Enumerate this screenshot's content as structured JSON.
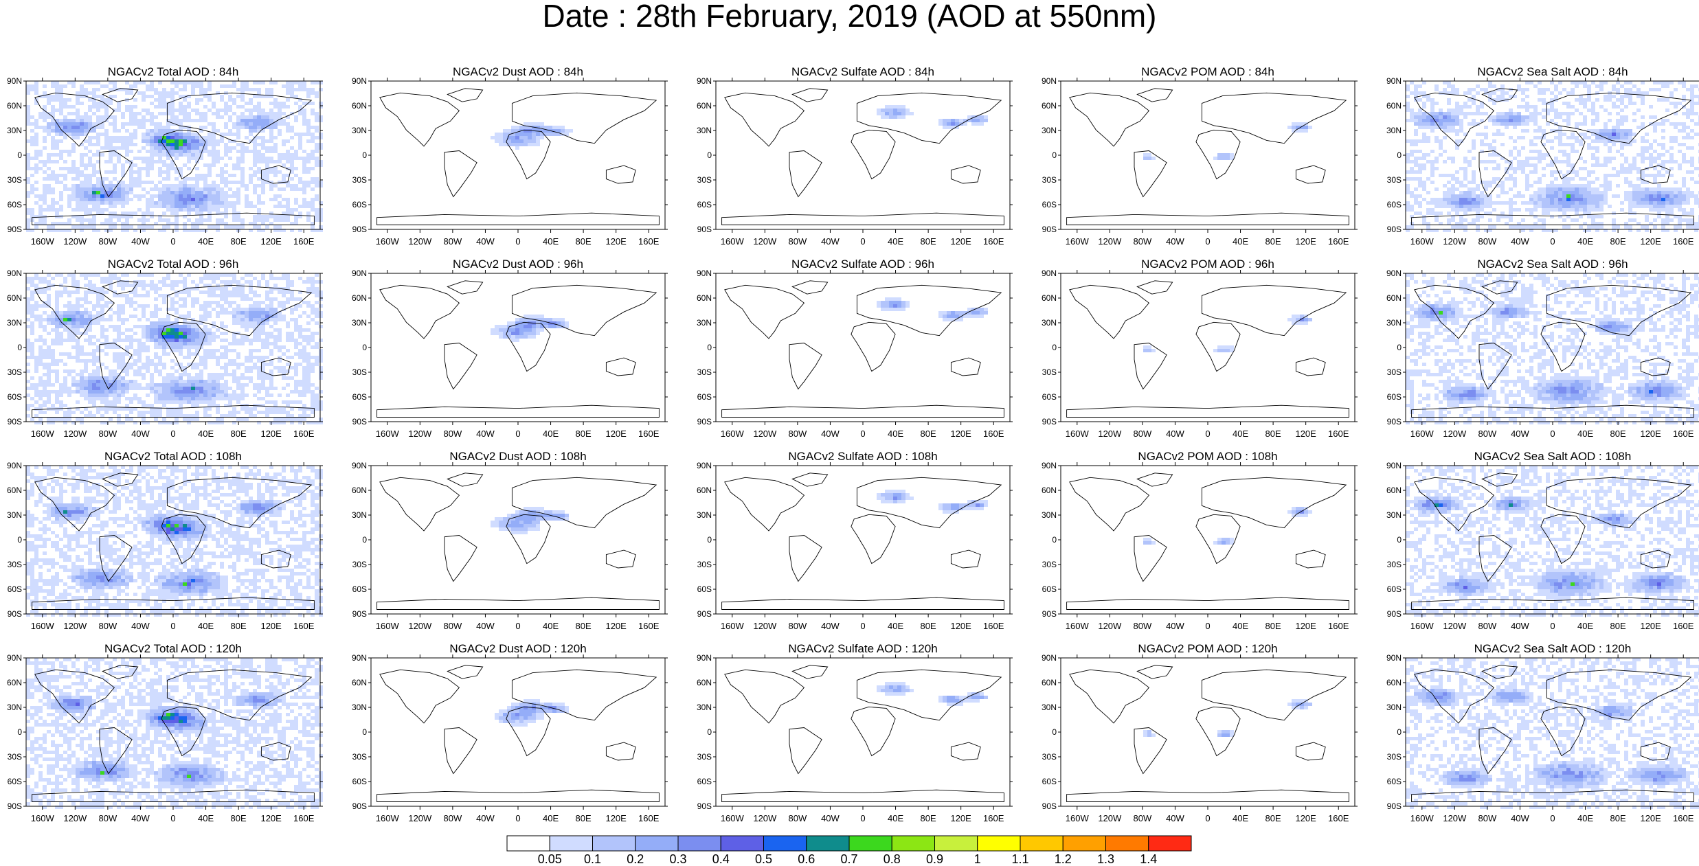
{
  "title": "Date : 28th February, 2019 (AOD at 550nm)",
  "axes": {
    "lon_ticks": [
      "160W",
      "120W",
      "80W",
      "40W",
      "0",
      "40E",
      "80E",
      "120E",
      "160E"
    ],
    "lat_ticks": [
      "90N",
      "60N",
      "30N",
      "0",
      "30S",
      "60S",
      "90S"
    ]
  },
  "panels": [
    {
      "title": "NGACv2 Total AOD : 84h",
      "species": "total",
      "hour": 84
    },
    {
      "title": "NGACv2 Dust AOD : 84h",
      "species": "dust",
      "hour": 84
    },
    {
      "title": "NGACv2 Sulfate AOD : 84h",
      "species": "sulfate",
      "hour": 84
    },
    {
      "title": "NGACv2 POM AOD : 84h",
      "species": "pom",
      "hour": 84
    },
    {
      "title": "NGACv2 Sea Salt AOD : 84h",
      "species": "seasalt",
      "hour": 84
    },
    {
      "title": "NGACv2 Total AOD : 96h",
      "species": "total",
      "hour": 96
    },
    {
      "title": "NGACv2 Dust AOD : 96h",
      "species": "dust",
      "hour": 96
    },
    {
      "title": "NGACv2 Sulfate AOD : 96h",
      "species": "sulfate",
      "hour": 96
    },
    {
      "title": "NGACv2 POM AOD : 96h",
      "species": "pom",
      "hour": 96
    },
    {
      "title": "NGACv2 Sea Salt AOD : 96h",
      "species": "seasalt",
      "hour": 96
    },
    {
      "title": "NGACv2 Total AOD : 108h",
      "species": "total",
      "hour": 108
    },
    {
      "title": "NGACv2 Dust AOD : 108h",
      "species": "dust",
      "hour": 108
    },
    {
      "title": "NGACv2 Sulfate AOD : 108h",
      "species": "sulfate",
      "hour": 108
    },
    {
      "title": "NGACv2 POM AOD : 108h",
      "species": "pom",
      "hour": 108
    },
    {
      "title": "NGACv2 Sea Salt AOD : 108h",
      "species": "seasalt",
      "hour": 108
    },
    {
      "title": "NGACv2 Total AOD : 120h",
      "species": "total",
      "hour": 120
    },
    {
      "title": "NGACv2 Dust AOD : 120h",
      "species": "dust",
      "hour": 120
    },
    {
      "title": "NGACv2 Sulfate AOD : 120h",
      "species": "sulfate",
      "hour": 120
    },
    {
      "title": "NGACv2 POM AOD : 120h",
      "species": "pom",
      "hour": 120
    },
    {
      "title": "NGACv2 Sea Salt  AOD : 120h",
      "species": "seasalt",
      "hour": 120
    }
  ],
  "colorbar": {
    "labels": [
      "0.05",
      "0.1",
      "0.2",
      "0.3",
      "0.4",
      "0.5",
      "0.6",
      "0.7",
      "0.8",
      "0.9",
      "1",
      "1.1",
      "1.2",
      "1.3",
      "1.4"
    ],
    "colors": [
      "#ffffff",
      "#d0dcff",
      "#b2c4fb",
      "#94adf8",
      "#7b8ef0",
      "#5e60e6",
      "#1a64f0",
      "#0f8c8c",
      "#3cd81e",
      "#8ce614",
      "#c8f03c",
      "#ffff00",
      "#ffc800",
      "#ffa000",
      "#ff7a00",
      "#ff2a14"
    ]
  },
  "colors": {
    "land_outline": "#000000",
    "panel_frame": "#000000"
  }
}
